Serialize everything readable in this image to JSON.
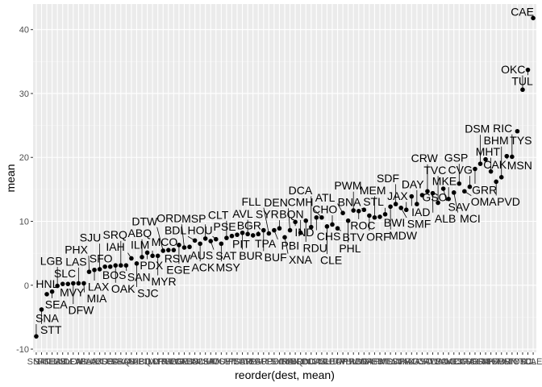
{
  "chart_data": {
    "type": "scatter",
    "xlabel": "reorder(dest, mean)",
    "ylabel": "mean",
    "ylim": [
      -10.5,
      44
    ],
    "y_ticks": [
      -10,
      0,
      10,
      20,
      30,
      40
    ],
    "grid": true,
    "points": [
      {
        "label": "SNA",
        "y": -8.0
      },
      {
        "label": "STT",
        "y": -3.8
      },
      {
        "label": "HNL",
        "y": -1.4
      },
      {
        "label": "SEA",
        "y": -1.0
      },
      {
        "label": "LGB",
        "y": -0.1
      },
      {
        "label": "MVY",
        "y": 0.2
      },
      {
        "label": "SLC",
        "y": 0.2
      },
      {
        "label": "DFW",
        "y": 0.3
      },
      {
        "label": "LAS",
        "y": 0.3
      },
      {
        "label": "MIA",
        "y": 0.3
      },
      {
        "label": "PHX",
        "y": 2.1
      },
      {
        "label": "LAX",
        "y": 2.4
      },
      {
        "label": "SJU",
        "y": 2.5
      },
      {
        "label": "BOS",
        "y": 2.9
      },
      {
        "label": "SFO",
        "y": 2.9
      },
      {
        "label": "OAK",
        "y": 3.1
      },
      {
        "label": "SRQ",
        "y": 3.1
      },
      {
        "label": "SAN",
        "y": 3.1
      },
      {
        "label": "IAH",
        "y": 4.2
      },
      {
        "label": "SJC",
        "y": 3.4
      },
      {
        "label": "ABQ",
        "y": 4.4
      },
      {
        "label": "PDX",
        "y": 5.1
      },
      {
        "label": "ILM",
        "y": 4.6
      },
      {
        "label": "MYR",
        "y": 4.6
      },
      {
        "label": "DTW",
        "y": 5.4
      },
      {
        "label": "RSW",
        "y": 5.5
      },
      {
        "label": "MCO",
        "y": 5.5
      },
      {
        "label": "EGE",
        "y": 6.3
      },
      {
        "label": "ORD",
        "y": 5.9
      },
      {
        "label": "AUS",
        "y": 6.0
      },
      {
        "label": "BDL",
        "y": 7.0
      },
      {
        "label": "ACK",
        "y": 6.5
      },
      {
        "label": "MSP",
        "y": 7.3
      },
      {
        "label": "SAT",
        "y": 6.9
      },
      {
        "label": "HOU",
        "y": 7.2
      },
      {
        "label": "MSY",
        "y": 6.5
      },
      {
        "label": "CLT",
        "y": 7.4
      },
      {
        "label": "PIT",
        "y": 7.7
      },
      {
        "label": "PSE",
        "y": 7.9
      },
      {
        "label": "BUR",
        "y": 8.2
      },
      {
        "label": "AVL",
        "y": 8.0
      },
      {
        "label": "TPA",
        "y": 7.8
      },
      {
        "label": "BGR",
        "y": 8.0
      },
      {
        "label": "BUF",
        "y": 8.6
      },
      {
        "label": "FLL",
        "y": 8.1
      },
      {
        "label": "PBI",
        "y": 8.6
      },
      {
        "label": "SYR",
        "y": 8.9
      },
      {
        "label": "XNA",
        "y": 7.5
      },
      {
        "label": "DEN",
        "y": 8.6
      },
      {
        "label": "IND",
        "y": 9.9
      },
      {
        "label": "BQN",
        "y": 8.2
      },
      {
        "label": "RDU",
        "y": 10.1
      },
      {
        "label": "DCA",
        "y": 9.1
      },
      {
        "label": "CHS",
        "y": 10.6
      },
      {
        "label": "CMH",
        "y": 10.6
      },
      {
        "label": "CLE",
        "y": 9.2
      },
      {
        "label": "CHO",
        "y": 9.5
      },
      {
        "label": "BTV",
        "y": 8.9
      },
      {
        "label": "ATL",
        "y": 11.3
      },
      {
        "label": "PHL",
        "y": 10.1
      },
      {
        "label": "PWM",
        "y": 11.7
      },
      {
        "label": "ROC",
        "y": 11.6
      },
      {
        "label": "BNA",
        "y": 11.8
      },
      {
        "label": "ORF",
        "y": 10.9
      },
      {
        "label": "MEM",
        "y": 10.6
      },
      {
        "label": "BWI",
        "y": 10.7
      },
      {
        "label": "STL",
        "y": 11.1
      },
      {
        "label": "MDW",
        "y": 12.3
      },
      {
        "label": "SDF",
        "y": 12.7
      },
      {
        "label": "SMF",
        "y": 12.1
      },
      {
        "label": "JAX",
        "y": 11.8
      },
      {
        "label": "IAD",
        "y": 13.9
      },
      {
        "label": "DAY",
        "y": 12.7
      },
      {
        "label": "GSO",
        "y": 14.1
      },
      {
        "label": "CRW",
        "y": 14.7
      },
      {
        "label": "ALB",
        "y": 14.4
      },
      {
        "label": "TVC",
        "y": 12.9
      },
      {
        "label": "SAV",
        "y": 15.1
      },
      {
        "label": "MKE",
        "y": 13.5
      },
      {
        "label": "MCI",
        "y": 14.5
      },
      {
        "label": "GSP",
        "y": 15.9
      },
      {
        "label": "OMA",
        "y": 14.7
      },
      {
        "label": "CVG",
        "y": 15.4
      },
      {
        "label": "GRR",
        "y": 18.2
      },
      {
        "label": "DSM",
        "y": 19.0
      },
      {
        "label": "CAK",
        "y": 19.7
      },
      {
        "label": "MHT",
        "y": 17.8
      },
      {
        "label": "PVD",
        "y": 16.2
      },
      {
        "label": "BHM",
        "y": 16.9
      },
      {
        "label": "MSN",
        "y": 20.2
      },
      {
        "label": "RIC",
        "y": 20.1
      },
      {
        "label": "TYS",
        "y": 24.1
      },
      {
        "label": "OKC",
        "y": 30.6
      },
      {
        "label": "TUL",
        "y": 33.7
      },
      {
        "label": "CAE",
        "y": 41.8
      }
    ]
  }
}
